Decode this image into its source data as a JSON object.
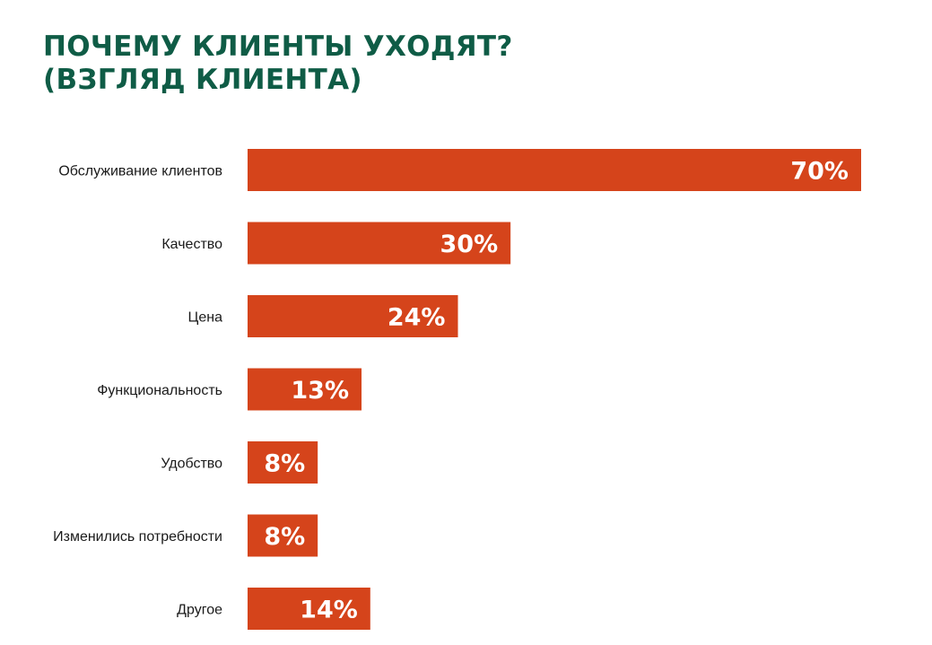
{
  "title": {
    "line1": "ПОЧЕМУ КЛИЕНТЫ УХОДЯТ?",
    "line2": "(ВЗГЛЯД КЛИЕНТА)"
  },
  "colors": {
    "title": "#0f5c46",
    "bar": "#d5441b",
    "value_text": "#ffffff",
    "label_text": "#1a1a1a"
  },
  "chart_data": {
    "type": "bar",
    "orientation": "horizontal",
    "title": "ПОЧЕМУ КЛИЕНТЫ УХОДЯТ? (ВЗГЛЯД КЛИЕНТА)",
    "categories": [
      "Обслуживание клиентов",
      "Качество",
      "Цена",
      "Функциональность",
      "Удобство",
      "Изменились потребности",
      "Другое"
    ],
    "values": [
      70,
      30,
      24,
      13,
      8,
      8,
      14
    ],
    "value_labels": [
      "70%",
      "30%",
      "24%",
      "13%",
      "8%",
      "8%",
      "14%"
    ],
    "unit": "%",
    "xlim": [
      0,
      70
    ],
    "grid": false,
    "legend": "none"
  }
}
